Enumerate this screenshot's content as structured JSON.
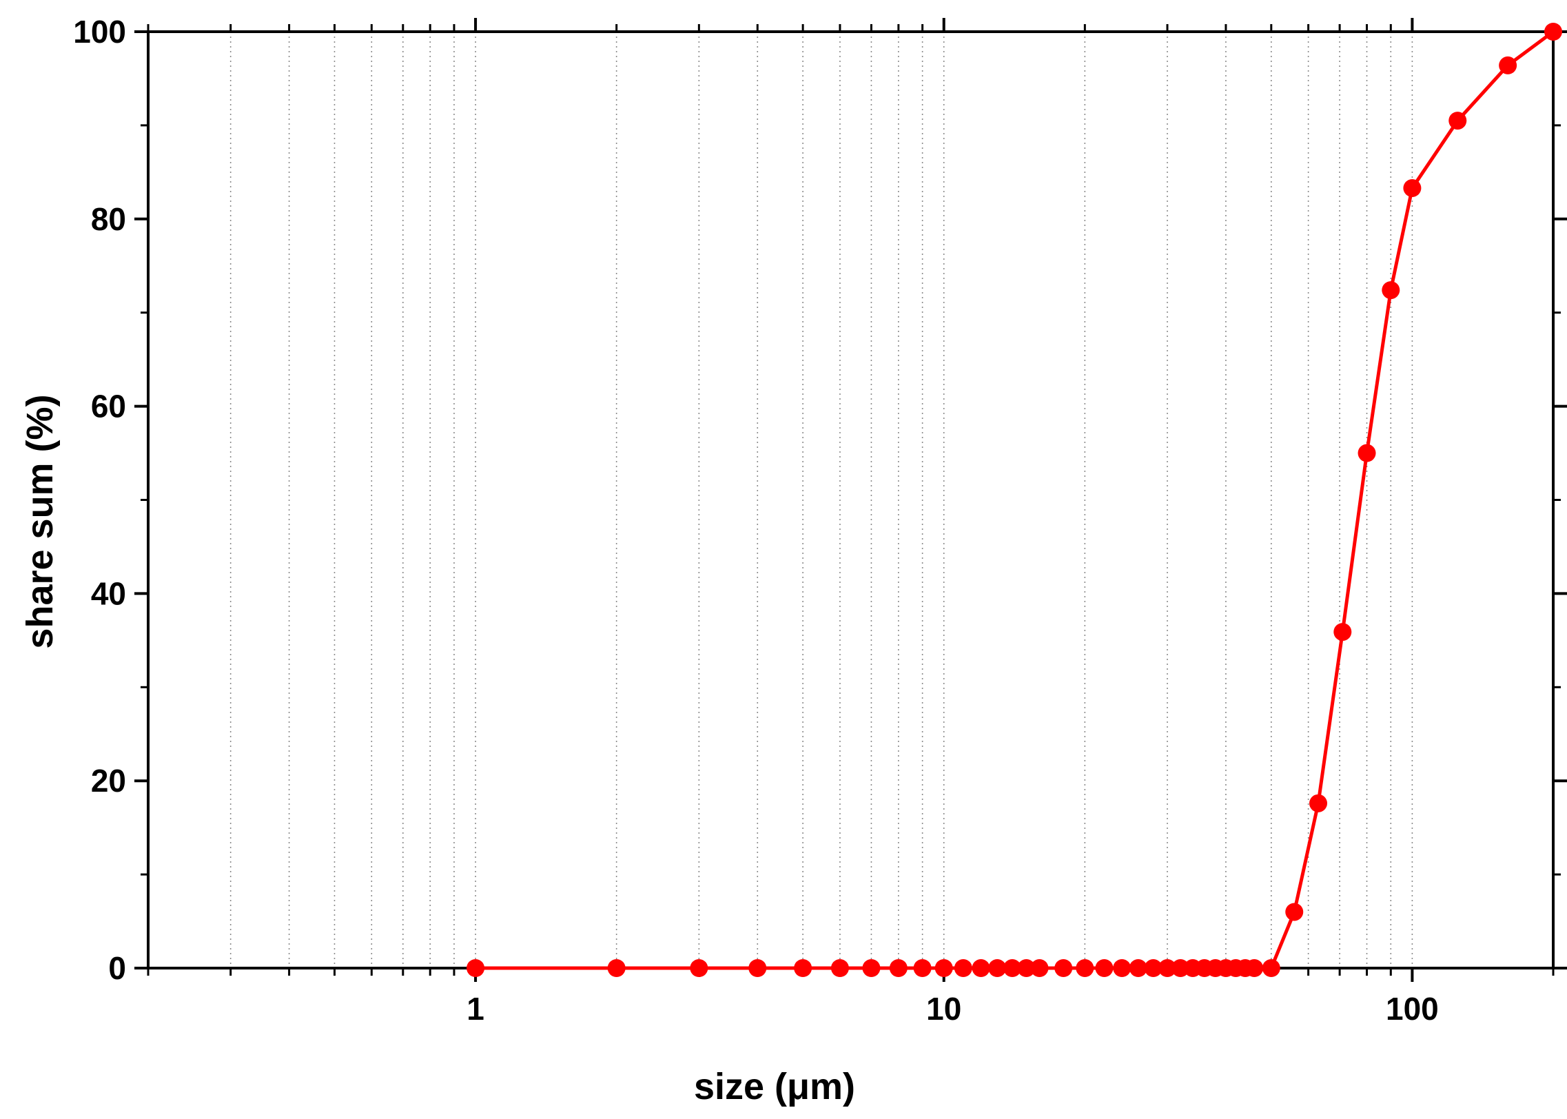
{
  "chart_data": {
    "type": "line",
    "title": "",
    "xlabel": "size (μm)",
    "ylabel": "share sum (%)",
    "xscale": "log",
    "xlim": [
      0.2,
      200
    ],
    "ylim": [
      0,
      100
    ],
    "x_ticks": [
      1,
      10,
      100
    ],
    "x_tick_labels": [
      "1",
      "10",
      "100"
    ],
    "y_ticks": [
      0,
      20,
      40,
      60,
      80,
      100
    ],
    "y_tick_labels": [
      "0",
      "20",
      "40",
      "60",
      "80",
      "100"
    ],
    "grid": "vertical dotted at each decade subdivision",
    "legend": "none",
    "markers": true,
    "series": [
      {
        "color": "#ff0000",
        "marker": "filled-circle",
        "points": [
          [
            1,
            0
          ],
          [
            2,
            0
          ],
          [
            3,
            0
          ],
          [
            4,
            0
          ],
          [
            5,
            0
          ],
          [
            6,
            0
          ],
          [
            7,
            0
          ],
          [
            8,
            0
          ],
          [
            9,
            0
          ],
          [
            10,
            0
          ],
          [
            11,
            0
          ],
          [
            12,
            0
          ],
          [
            13,
            0
          ],
          [
            14,
            0
          ],
          [
            15,
            0
          ],
          [
            16,
            0
          ],
          [
            18,
            0
          ],
          [
            20,
            0
          ],
          [
            22,
            0
          ],
          [
            24,
            0
          ],
          [
            26,
            0
          ],
          [
            28,
            0
          ],
          [
            30,
            0
          ],
          [
            32,
            0
          ],
          [
            34,
            0
          ],
          [
            36,
            0
          ],
          [
            38,
            0
          ],
          [
            40,
            0
          ],
          [
            42,
            0
          ],
          [
            44,
            0
          ],
          [
            46,
            0
          ],
          [
            50,
            0
          ],
          [
            56,
            6
          ],
          [
            63,
            17.6
          ],
          [
            71,
            35.9
          ],
          [
            80,
            55
          ],
          [
            90,
            72.4
          ],
          [
            100,
            83.3
          ],
          [
            125,
            90.5
          ],
          [
            160,
            96.4
          ],
          [
            200,
            100
          ]
        ]
      }
    ]
  }
}
